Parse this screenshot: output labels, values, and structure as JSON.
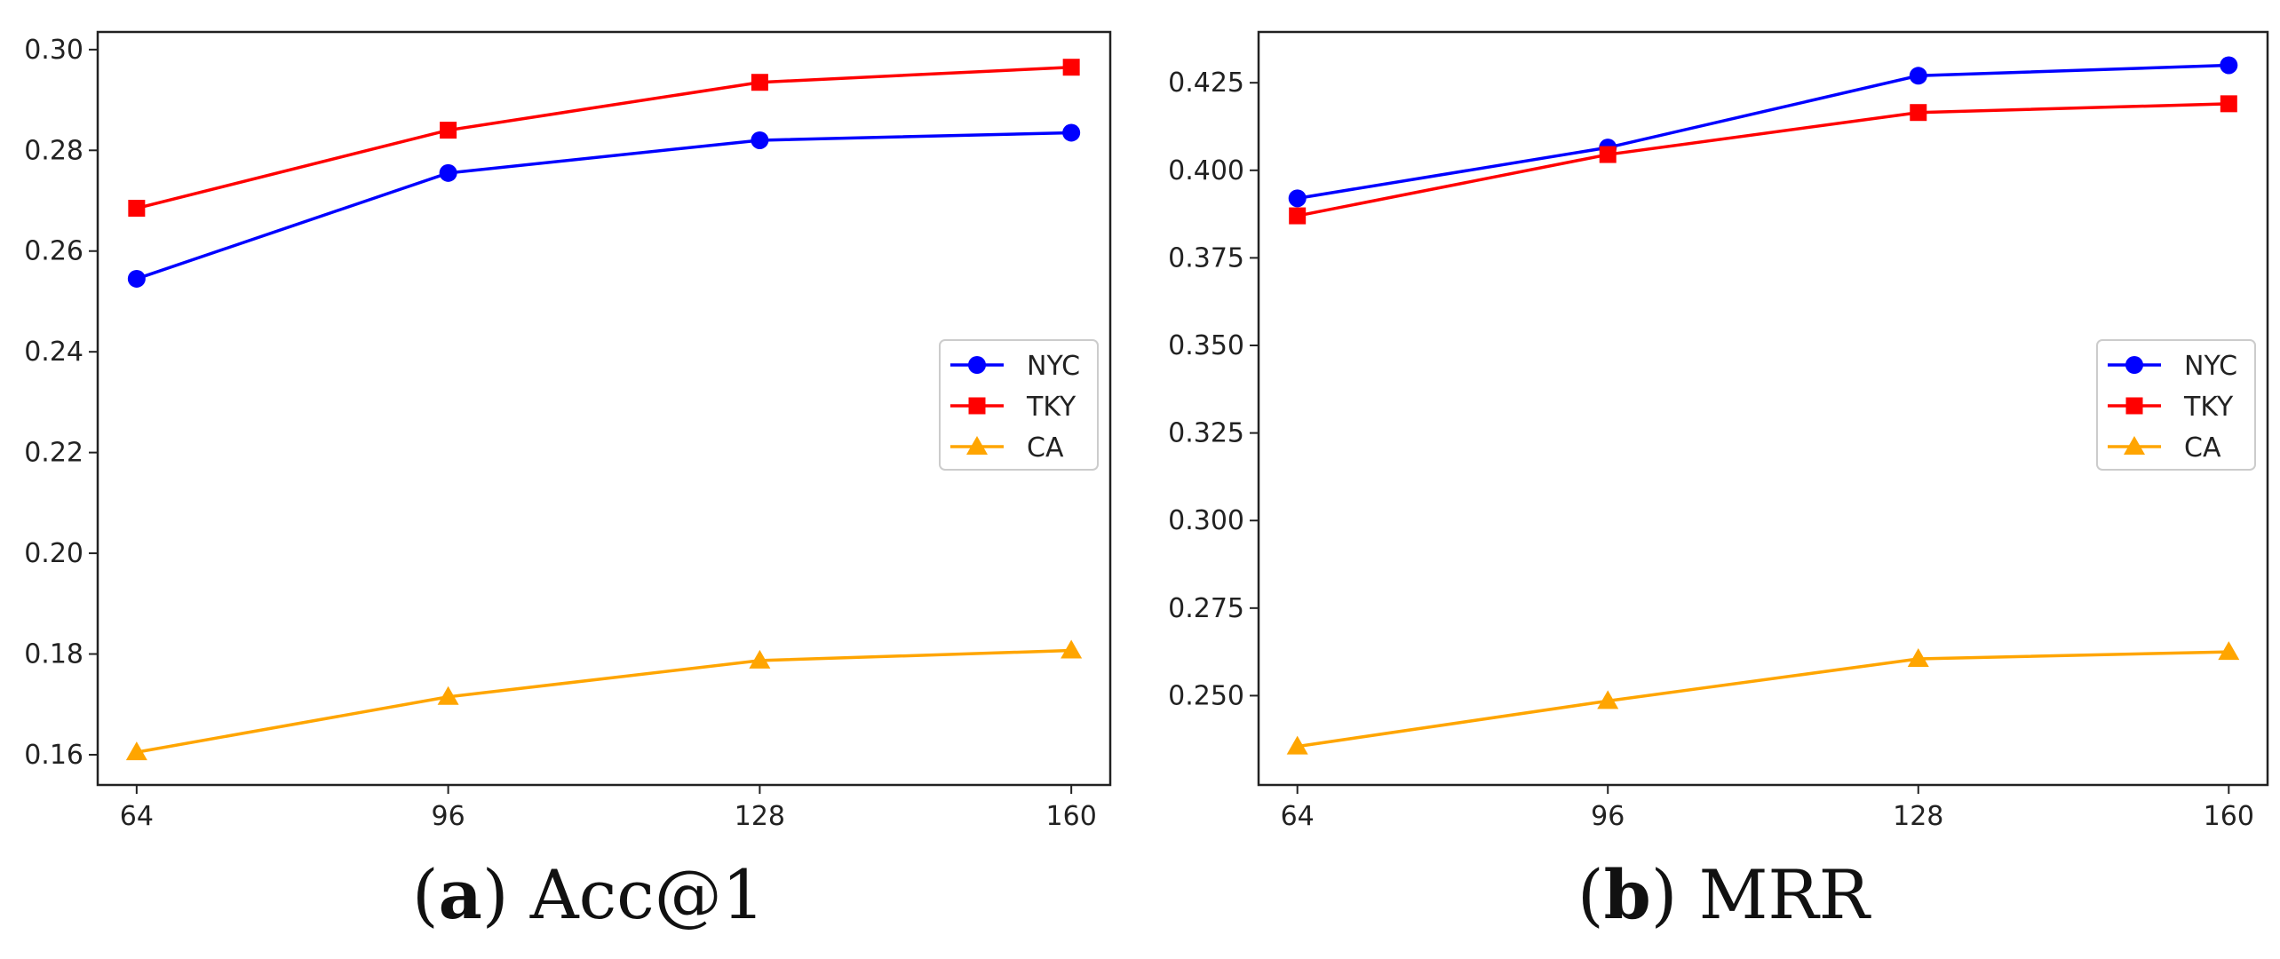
{
  "chart_data": [
    {
      "type": "line",
      "caption_letter": "a",
      "caption_title": "Acc@1",
      "x": [
        64,
        96,
        128,
        160
      ],
      "xticks": [
        "64",
        "96",
        "128",
        "160"
      ],
      "ylim": [
        0.154,
        0.3035
      ],
      "yticks": [
        "0.16",
        "0.18",
        "0.20",
        "0.22",
        "0.24",
        "0.26",
        "0.28",
        "0.30"
      ],
      "ytick_values": [
        0.16,
        0.18,
        0.2,
        0.22,
        0.24,
        0.26,
        0.28,
        0.3
      ],
      "legend_position": "center-right",
      "grid": false,
      "series": [
        {
          "name": "NYC",
          "color": "#0000ff",
          "marker": "circle",
          "values": [
            0.2545,
            0.2755,
            0.282,
            0.2835
          ]
        },
        {
          "name": "TKY",
          "color": "#ff0000",
          "marker": "square",
          "values": [
            0.2685,
            0.284,
            0.2935,
            0.2965
          ]
        },
        {
          "name": "CA",
          "color": "#ffa500",
          "marker": "triangle",
          "values": [
            0.1605,
            0.1715,
            0.1787,
            0.1807
          ]
        }
      ]
    },
    {
      "type": "line",
      "caption_letter": "b",
      "caption_title": "MRR",
      "x": [
        64,
        96,
        128,
        160
      ],
      "xticks": [
        "64",
        "96",
        "128",
        "160"
      ],
      "ylim": [
        0.2245,
        0.4395
      ],
      "yticks": [
        "0.250",
        "0.275",
        "0.300",
        "0.325",
        "0.350",
        "0.375",
        "0.400",
        "0.425"
      ],
      "ytick_values": [
        0.25,
        0.275,
        0.3,
        0.325,
        0.35,
        0.375,
        0.4,
        0.425
      ],
      "legend_position": "center-right",
      "grid": false,
      "series": [
        {
          "name": "NYC",
          "color": "#0000ff",
          "marker": "circle",
          "values": [
            0.392,
            0.4065,
            0.427,
            0.43
          ]
        },
        {
          "name": "TKY",
          "color": "#ff0000",
          "marker": "square",
          "values": [
            0.387,
            0.4045,
            0.4165,
            0.419
          ]
        },
        {
          "name": "CA",
          "color": "#ffa500",
          "marker": "triangle",
          "values": [
            0.2355,
            0.2485,
            0.2605,
            0.2625
          ]
        }
      ]
    }
  ]
}
